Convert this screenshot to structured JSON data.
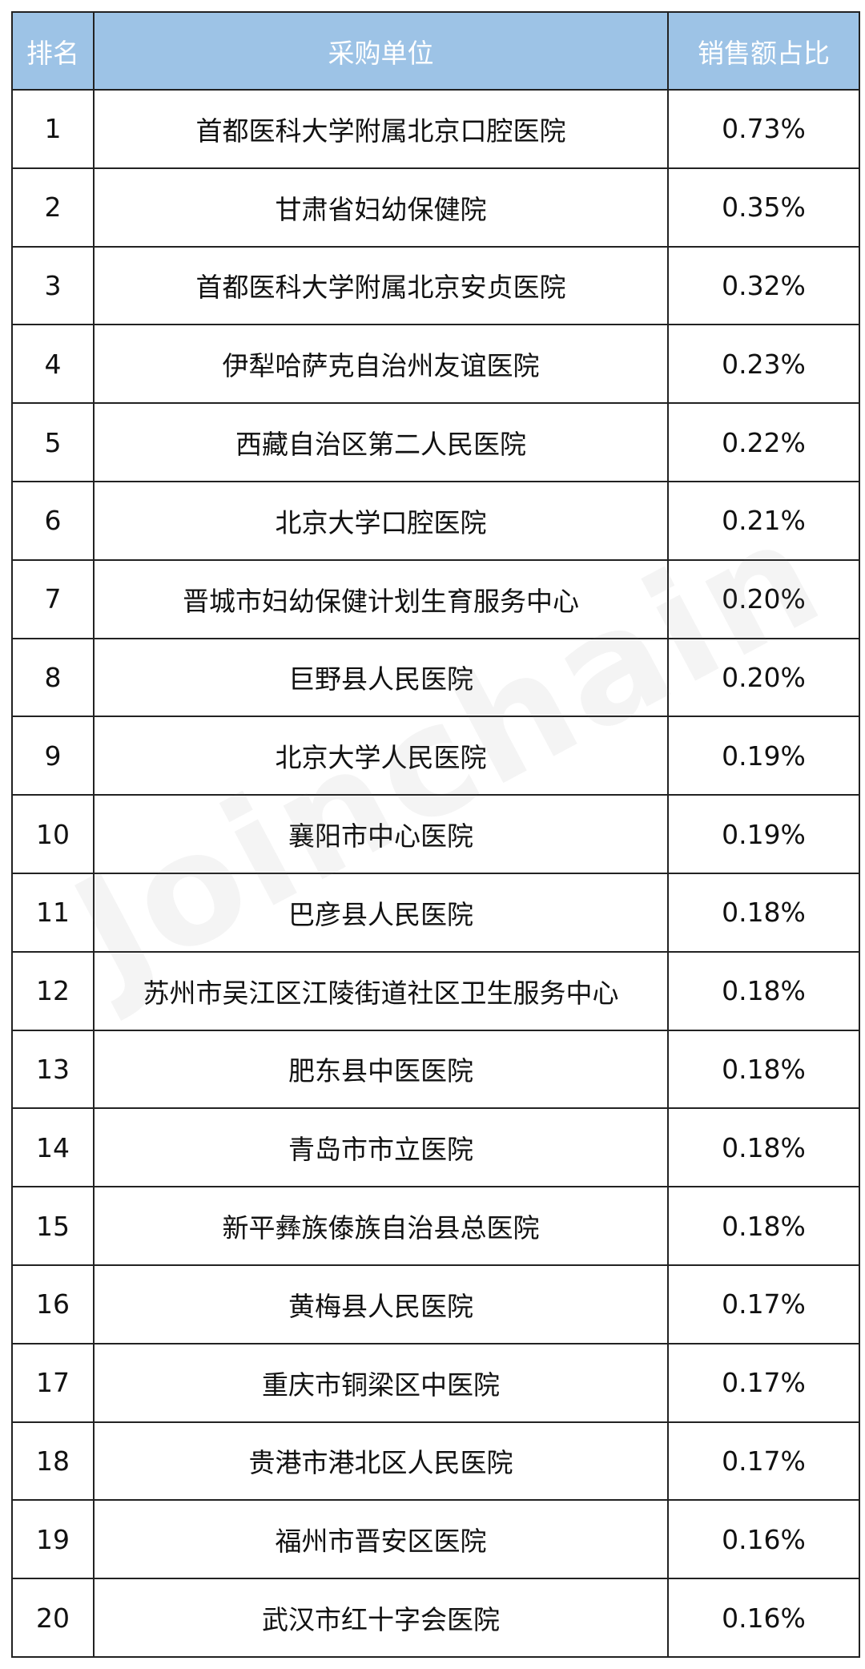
{
  "table": {
    "headers": [
      "排名",
      "采购单位",
      "销售额占比"
    ],
    "header_color": "#9dc3e6",
    "rows": [
      {
        "rank": "1",
        "unit": "首都医科大学附属北京口腔医院",
        "share": "0.73%"
      },
      {
        "rank": "2",
        "unit": "甘肃省妇幼保健院",
        "share": "0.35%"
      },
      {
        "rank": "3",
        "unit": "首都医科大学附属北京安贞医院",
        "share": "0.32%"
      },
      {
        "rank": "4",
        "unit": "伊犁哈萨克自治州友谊医院",
        "share": "0.23%"
      },
      {
        "rank": "5",
        "unit": "西藏自治区第二人民医院",
        "share": "0.22%"
      },
      {
        "rank": "6",
        "unit": "北京大学口腔医院",
        "share": "0.21%"
      },
      {
        "rank": "7",
        "unit": "晋城市妇幼保健计划生育服务中心",
        "share": "0.20%"
      },
      {
        "rank": "8",
        "unit": "巨野县人民医院",
        "share": "0.20%"
      },
      {
        "rank": "9",
        "unit": "北京大学人民医院",
        "share": "0.19%"
      },
      {
        "rank": "10",
        "unit": "襄阳市中心医院",
        "share": "0.19%"
      },
      {
        "rank": "11",
        "unit": "巴彦县人民医院",
        "share": "0.18%"
      },
      {
        "rank": "12",
        "unit": "苏州市吴江区江陵街道社区卫生服务中心",
        "share": "0.18%"
      },
      {
        "rank": "13",
        "unit": "肥东县中医医院",
        "share": "0.18%"
      },
      {
        "rank": "14",
        "unit": "青岛市市立医院",
        "share": "0.18%"
      },
      {
        "rank": "15",
        "unit": "新平彝族傣族自治县总医院",
        "share": "0.18%"
      },
      {
        "rank": "16",
        "unit": "黄梅县人民医院",
        "share": "0.17%"
      },
      {
        "rank": "17",
        "unit": "重庆市铜梁区中医院",
        "share": "0.17%"
      },
      {
        "rank": "18",
        "unit": "贵港市港北区人民医院",
        "share": "0.17%"
      },
      {
        "rank": "19",
        "unit": "福州市晋安区医院",
        "share": "0.16%"
      },
      {
        "rank": "20",
        "unit": "武汉市红十字会医院",
        "share": "0.16%"
      }
    ]
  },
  "watermark": "Joinchain"
}
